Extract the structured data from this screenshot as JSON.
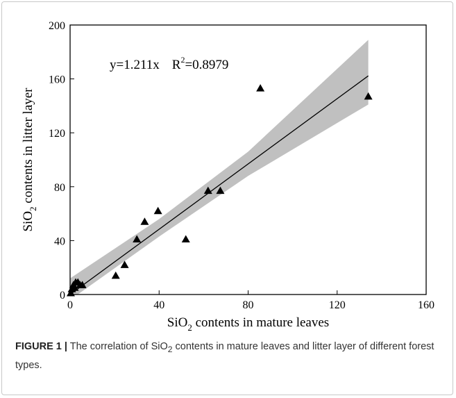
{
  "chart_data": {
    "type": "scatter",
    "xlabel_pre": "SiO",
    "xlabel_sub": "2",
    "xlabel_post": " contents in mature leaves",
    "ylabel_pre": "SiO",
    "ylabel_sub": "2",
    "ylabel_post": " contents in litter layer",
    "xlim": [
      0,
      160
    ],
    "ylim": [
      0,
      200
    ],
    "xticks": [
      0,
      40,
      80,
      120,
      160
    ],
    "yticks": [
      0,
      40,
      80,
      120,
      160,
      200
    ],
    "fit": {
      "slope": 1.211,
      "x_range": [
        0,
        134
      ],
      "equation": "y=1.211x",
      "r2_pre": "R",
      "r2_sup": "2",
      "r2_post": "=0.8979",
      "band": [
        {
          "x": 0,
          "lo": -4,
          "hi": 12
        },
        {
          "x": 40,
          "lo": 43,
          "hi": 56
        },
        {
          "x": 80,
          "lo": 88,
          "hi": 106
        },
        {
          "x": 134,
          "lo": 141,
          "hi": 189
        }
      ],
      "band_color": "#c0c0c0"
    },
    "points": [
      {
        "x": 0.3,
        "y": 1
      },
      {
        "x": 0.8,
        "y": 4
      },
      {
        "x": 1.5,
        "y": 7
      },
      {
        "x": 2.0,
        "y": 5
      },
      {
        "x": 2.5,
        "y": 9
      },
      {
        "x": 3.5,
        "y": 9
      },
      {
        "x": 4.5,
        "y": 7
      },
      {
        "x": 5.5,
        "y": 7
      },
      {
        "x": 20.5,
        "y": 14
      },
      {
        "x": 24.5,
        "y": 22
      },
      {
        "x": 30,
        "y": 41
      },
      {
        "x": 33.5,
        "y": 54
      },
      {
        "x": 39.5,
        "y": 62
      },
      {
        "x": 52,
        "y": 41
      },
      {
        "x": 62,
        "y": 77
      },
      {
        "x": 67.5,
        "y": 77
      },
      {
        "x": 85.5,
        "y": 153
      },
      {
        "x": 134,
        "y": 147
      }
    ],
    "marker_color": "#000000"
  },
  "caption": {
    "label": "FIGURE 1 |",
    "text_pre": " The correlation of SiO",
    "text_sub": "2",
    "text_post": " contents in mature leaves and litter layer of different forest types."
  }
}
